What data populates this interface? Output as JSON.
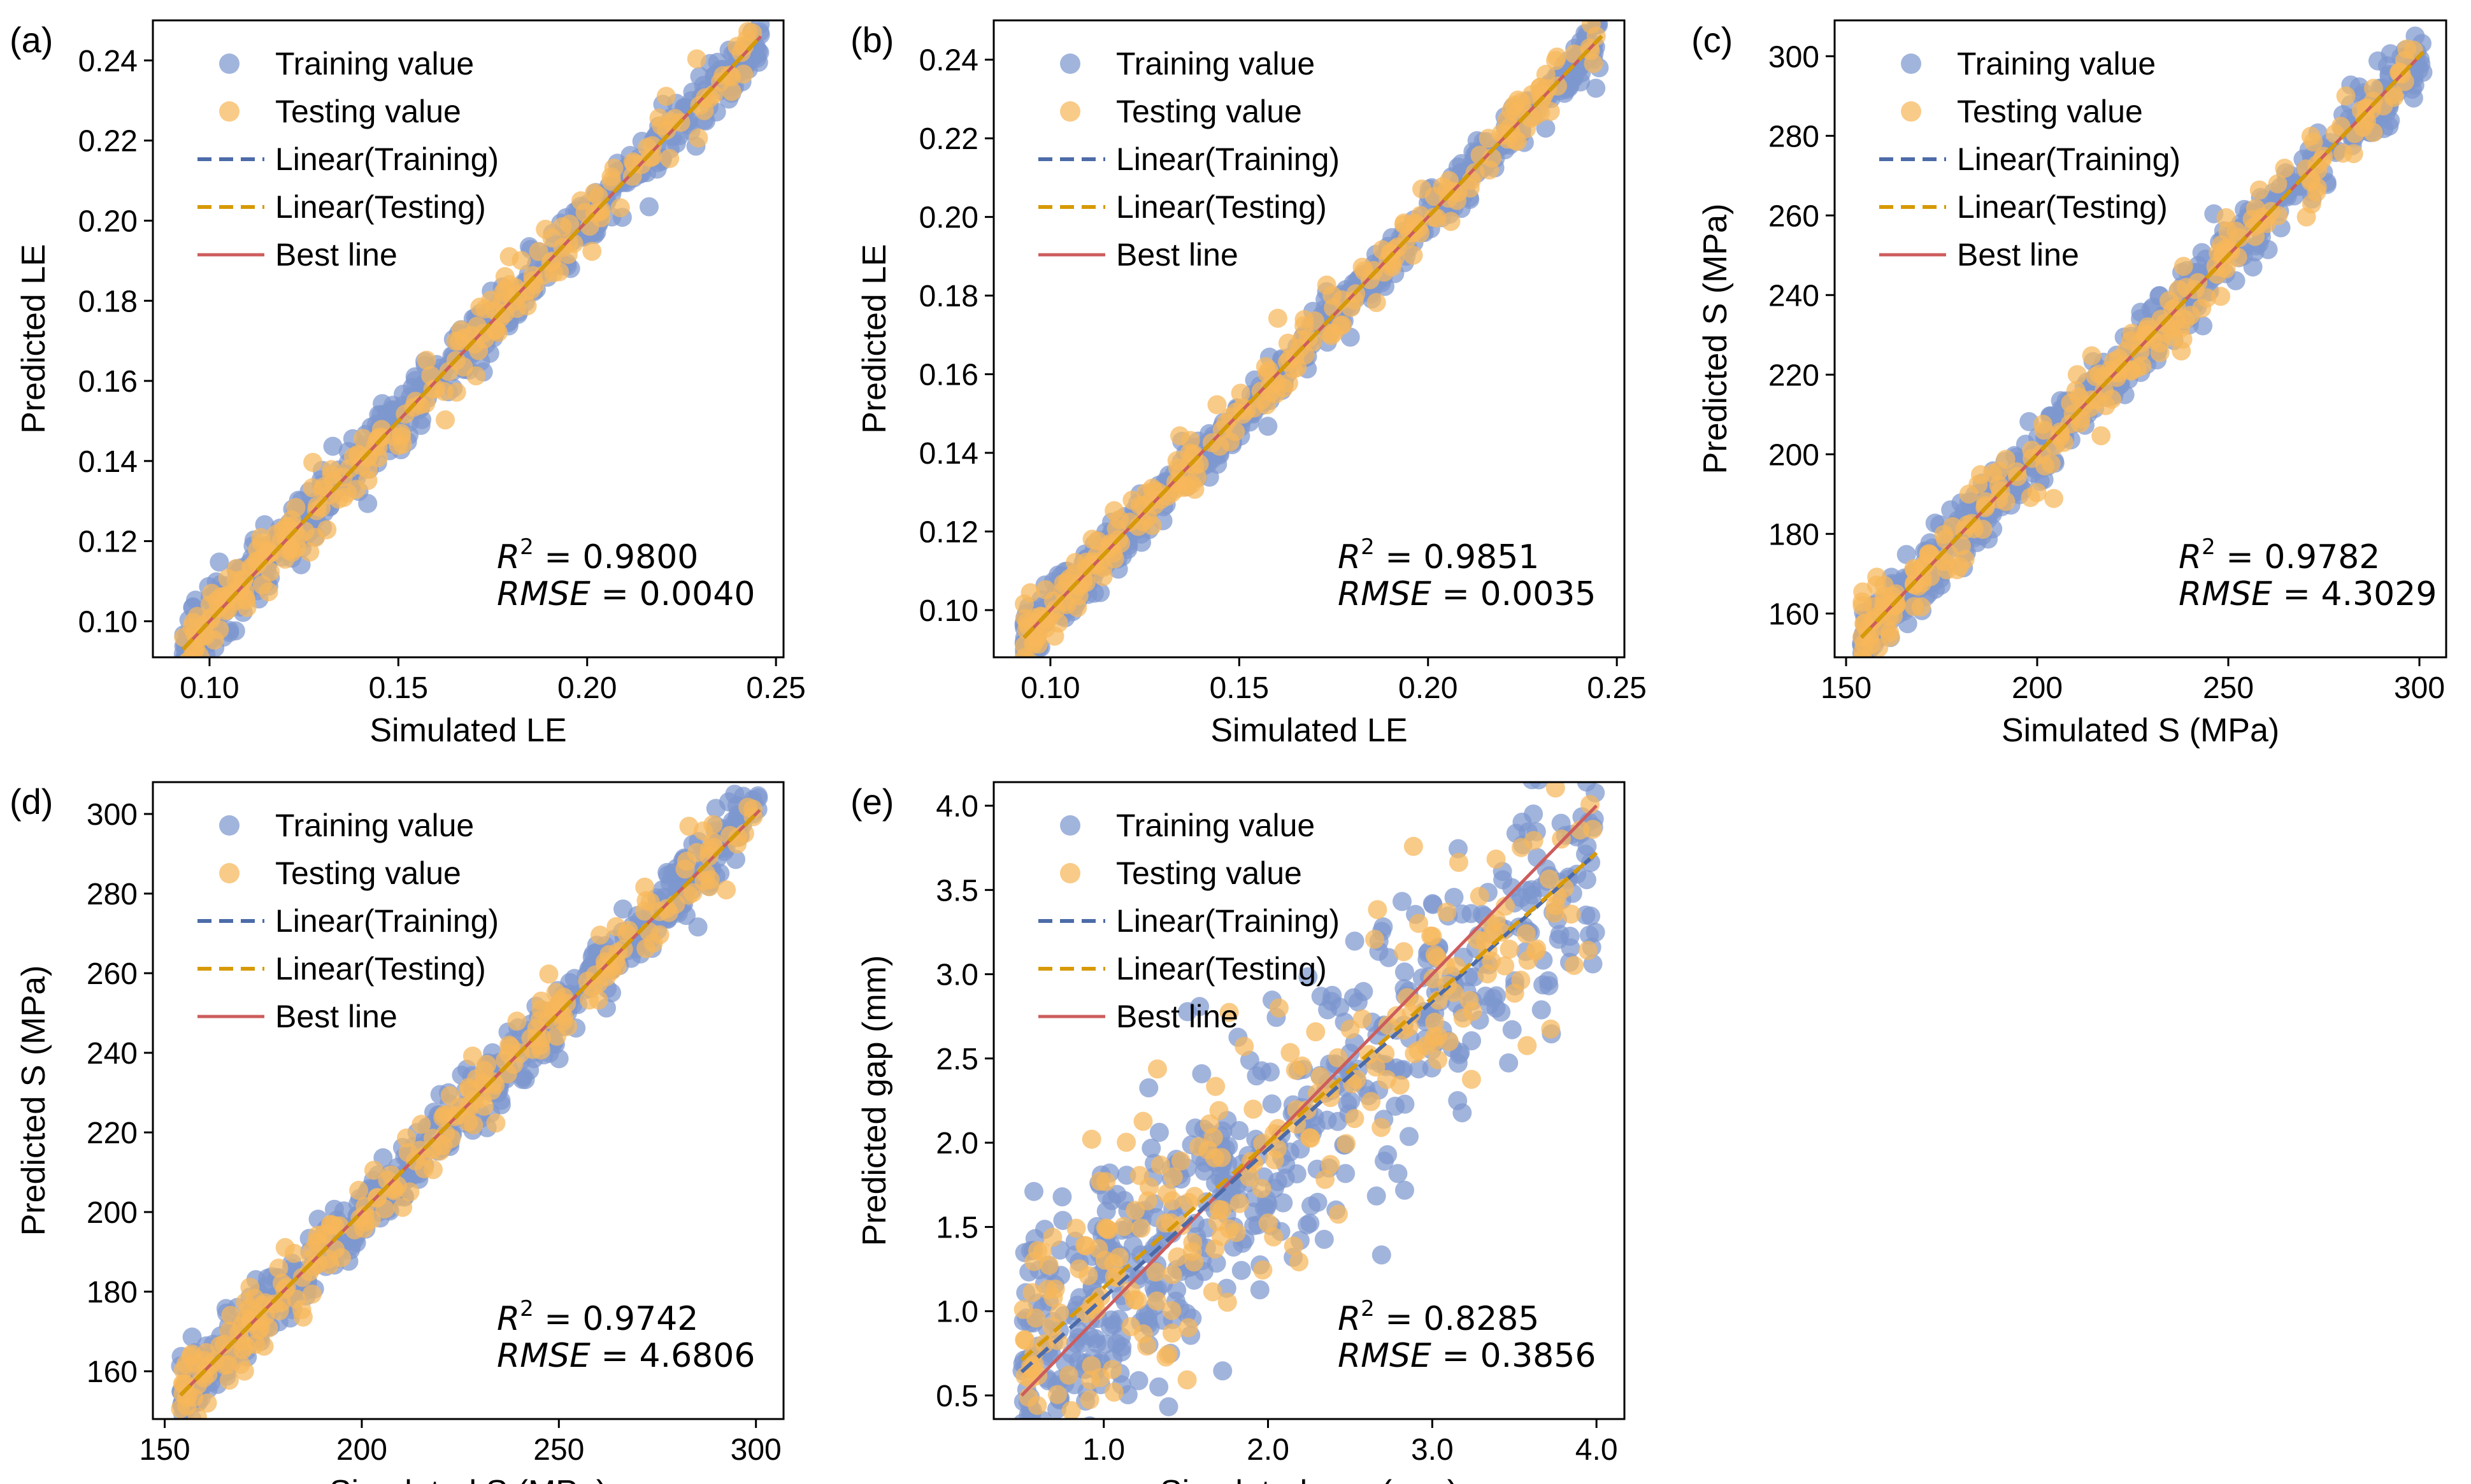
{
  "colors": {
    "training": "#7d97cf",
    "testing": "#f6b75a",
    "linear_training": "#4c6ba8",
    "linear_testing": "#d79a06",
    "best_line": "#cd5c5c"
  },
  "legend": {
    "training_value": "Training value",
    "testing_value": "Testing value",
    "linear_training": "Linear(Training)",
    "linear_testing": "Linear(Testing)",
    "best_line": "Best line"
  },
  "chart_data": [
    {
      "type": "scatter",
      "panel": "(a)",
      "xlabel": "Simulated LE",
      "ylabel": "Predicted LE",
      "xlim": [
        0.085,
        0.252
      ],
      "ylim": [
        0.091,
        0.25
      ],
      "xticks": [
        0.1,
        0.15,
        0.2,
        0.25
      ],
      "xtick_labels": [
        "0.10",
        "0.15",
        "0.20",
        "0.25"
      ],
      "yticks": [
        0.1,
        0.12,
        0.14,
        0.16,
        0.18,
        0.2,
        0.22,
        0.24
      ],
      "ytick_labels": [
        "0.10",
        "0.12",
        "0.14",
        "0.16",
        "0.18",
        "0.20",
        "0.22",
        "0.24"
      ],
      "range": [
        0.093,
        0.246
      ],
      "r2": "0.9800",
      "rmse": "0.0040",
      "r2_label": "R",
      "rmse_label": "RMSE",
      "noise_train": 0.0037,
      "noise_test": 0.0042,
      "fit_train": [
        1.0,
        0.0
      ],
      "fit_test": [
        1.0,
        0.0
      ]
    },
    {
      "type": "scatter",
      "panel": "(b)",
      "xlabel": "Simulated LE",
      "ylabel": "Predicted LE",
      "xlim": [
        0.085,
        0.252
      ],
      "ylim": [
        0.088,
        0.25
      ],
      "xticks": [
        0.1,
        0.15,
        0.2,
        0.25
      ],
      "xtick_labels": [
        "0.10",
        "0.15",
        "0.20",
        "0.25"
      ],
      "yticks": [
        0.1,
        0.12,
        0.14,
        0.16,
        0.18,
        0.2,
        0.22,
        0.24
      ],
      "ytick_labels": [
        "0.10",
        "0.12",
        "0.14",
        "0.16",
        "0.18",
        "0.20",
        "0.22",
        "0.24"
      ],
      "range": [
        0.093,
        0.246
      ],
      "r2": "0.9851",
      "rmse": "0.0035",
      "r2_label": "R",
      "rmse_label": "RMSE",
      "noise_train": 0.0033,
      "noise_test": 0.0037,
      "fit_train": [
        1.0,
        0.0
      ],
      "fit_test": [
        1.0,
        0.0
      ]
    },
    {
      "type": "scatter",
      "panel": "(c)",
      "xlabel": "Simulated S (MPa)",
      "ylabel": "Predicted S (MPa)",
      "xlim": [
        147,
        307
      ],
      "ylim": [
        149,
        309
      ],
      "xticks": [
        150,
        200,
        250,
        300
      ],
      "xtick_labels": [
        "150",
        "200",
        "250",
        "300"
      ],
      "yticks": [
        160,
        180,
        200,
        220,
        240,
        260,
        280,
        300
      ],
      "ytick_labels": [
        "160",
        "180",
        "200",
        "220",
        "240",
        "260",
        "280",
        "300"
      ],
      "range": [
        154,
        301
      ],
      "r2": "0.9782",
      "rmse": "4.3029",
      "r2_label": "R",
      "rmse_label": "RMSE",
      "noise_train": 4.1,
      "noise_test": 4.6,
      "fit_train": [
        1.0,
        0.0
      ],
      "fit_test": [
        1.0,
        0.0
      ]
    },
    {
      "type": "scatter",
      "panel": "(d)",
      "xlabel": "Simulated S (MPa)",
      "ylabel": "Predicted S (MPa)",
      "xlim": [
        147,
        307
      ],
      "ylim": [
        148,
        308
      ],
      "xticks": [
        150,
        200,
        250,
        300
      ],
      "xtick_labels": [
        "150",
        "200",
        "250",
        "300"
      ],
      "yticks": [
        160,
        180,
        200,
        220,
        240,
        260,
        280,
        300
      ],
      "ytick_labels": [
        "160",
        "180",
        "200",
        "220",
        "240",
        "260",
        "280",
        "300"
      ],
      "range": [
        154,
        301
      ],
      "r2": "0.9742",
      "rmse": "4.6806",
      "r2_label": "R",
      "rmse_label": "RMSE",
      "noise_train": 4.5,
      "noise_test": 4.9,
      "fit_train": [
        1.0,
        0.0
      ],
      "fit_test": [
        1.0,
        0.0
      ]
    },
    {
      "type": "scatter",
      "panel": "(e)",
      "xlabel": "Simulated gap (mm)",
      "ylabel": "Predicted gap (mm)",
      "xlim": [
        0.33,
        4.17
      ],
      "ylim": [
        0.36,
        4.14
      ],
      "xticks": [
        1.0,
        2.0,
        3.0,
        4.0
      ],
      "xtick_labels": [
        "1.0",
        "2.0",
        "3.0",
        "4.0"
      ],
      "yticks": [
        0.5,
        1.0,
        1.5,
        2.0,
        2.5,
        3.0,
        3.5,
        4.0
      ],
      "ytick_labels": [
        "0.5",
        "1.0",
        "1.5",
        "2.0",
        "2.5",
        "3.0",
        "3.5",
        "4.0"
      ],
      "range": [
        0.5,
        4.0
      ],
      "r2": "0.8285",
      "rmse": "0.3856",
      "r2_label": "R",
      "rmse_label": "RMSE",
      "noise_train": 0.37,
      "noise_test": 0.4,
      "fit_train": [
        0.88,
        0.2
      ],
      "fit_test": [
        0.86,
        0.28
      ]
    }
  ]
}
